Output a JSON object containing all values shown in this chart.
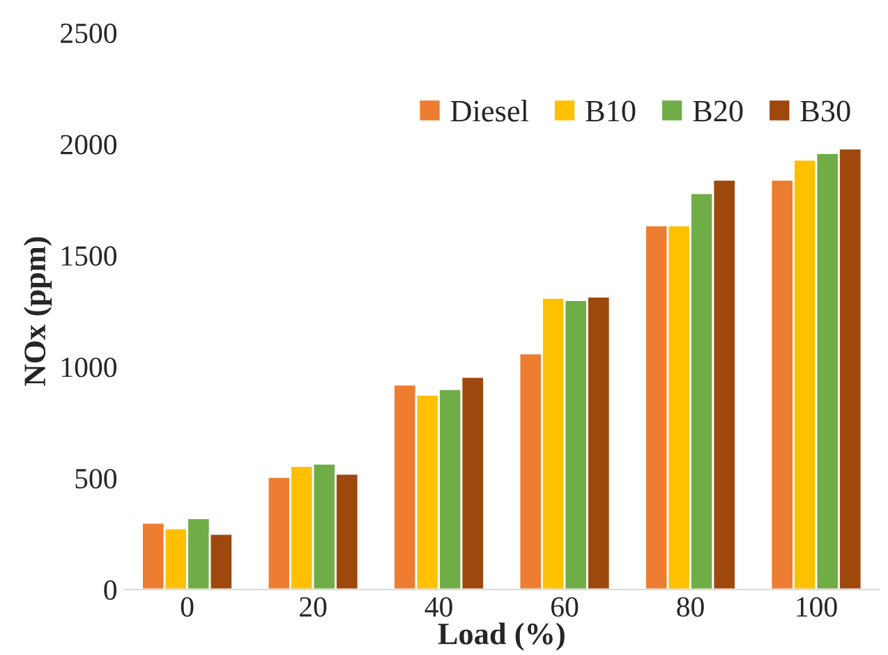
{
  "chart_data": {
    "type": "bar",
    "xlabel": "Load (%)",
    "ylabel": "NOx (ppm)",
    "categories": [
      "0",
      "20",
      "40",
      "60",
      "80",
      "100"
    ],
    "series": [
      {
        "name": "Diesel",
        "color": "#ed7d31",
        "values": [
          300,
          505,
          920,
          1060,
          1635,
          1840
        ]
      },
      {
        "name": "B10",
        "color": "#ffc000",
        "values": [
          275,
          555,
          875,
          1310,
          1635,
          1930
        ]
      },
      {
        "name": "B20",
        "color": "#70ad47",
        "values": [
          320,
          565,
          900,
          1300,
          1780,
          1960
        ]
      },
      {
        "name": "B30",
        "color": "#9e480e",
        "values": [
          250,
          520,
          955,
          1315,
          1840,
          1980
        ]
      }
    ],
    "ylim": [
      0,
      2500
    ],
    "yticks": [
      0,
      500,
      1000,
      1500,
      2000,
      2500
    ],
    "grid": false,
    "legend": "top right"
  }
}
